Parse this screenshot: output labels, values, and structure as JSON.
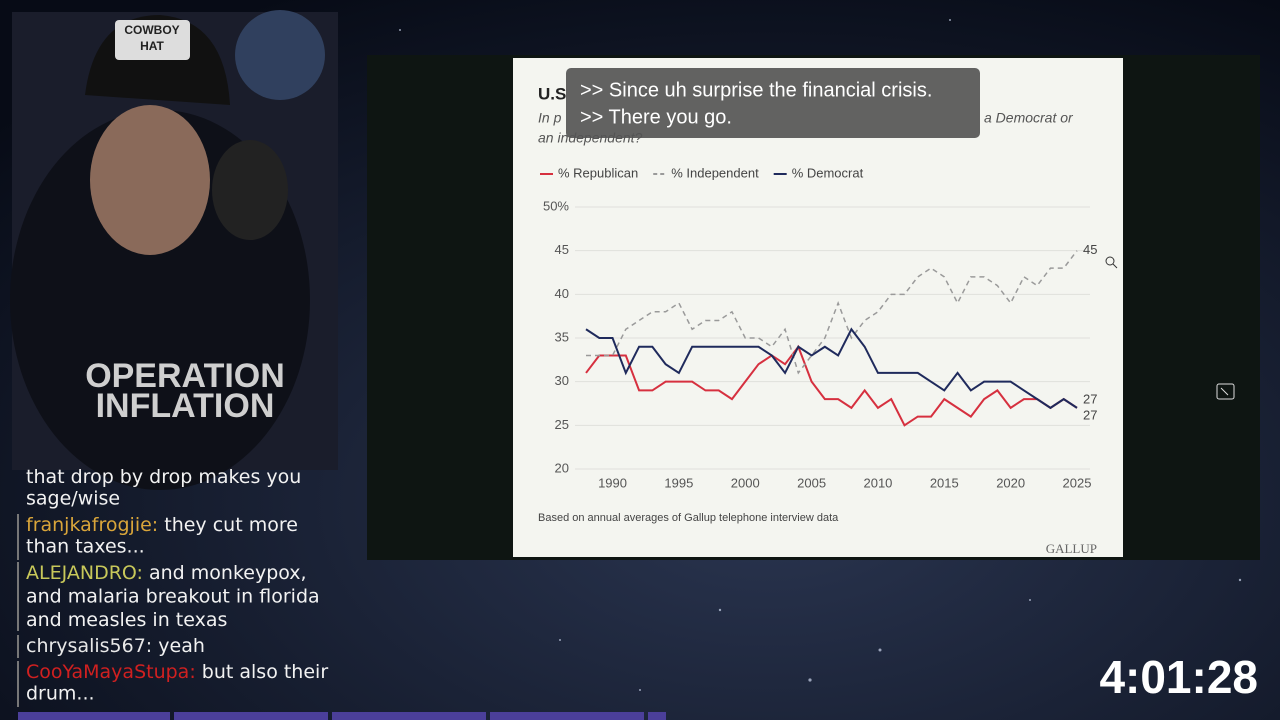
{
  "chart_data": {
    "type": "line",
    "title": "U.S",
    "subtitle_start": "In p",
    "subtitle_end": "a Democrat or",
    "subtitle_line2": "an independent?",
    "x": [
      1988,
      1989,
      1990,
      1991,
      1992,
      1993,
      1994,
      1995,
      1996,
      1997,
      1998,
      1999,
      2000,
      2001,
      2002,
      2003,
      2004,
      2005,
      2006,
      2007,
      2008,
      2009,
      2010,
      2011,
      2012,
      2013,
      2014,
      2015,
      2016,
      2017,
      2018,
      2019,
      2020,
      2021,
      2022,
      2023,
      2024,
      2025
    ],
    "series": [
      {
        "name": "% Republican",
        "color": "#d6303f",
        "dashed": false,
        "values": [
          31,
          33,
          33,
          33,
          29,
          29,
          30,
          30,
          30,
          29,
          29,
          28,
          30,
          32,
          33,
          32,
          34,
          30,
          28,
          28,
          27,
          29,
          27,
          28,
          25,
          26,
          26,
          28,
          27,
          26,
          28,
          29,
          27,
          28,
          28,
          27,
          28,
          27
        ]
      },
      {
        "name": "% Independent",
        "color": "#9a9a9a",
        "dashed": true,
        "values": [
          33,
          33,
          33,
          36,
          37,
          38,
          38,
          39,
          36,
          37,
          37,
          38,
          35,
          35,
          34,
          36,
          31,
          33,
          35,
          39,
          35,
          37,
          38,
          40,
          40,
          42,
          43,
          42,
          39,
          42,
          42,
          41,
          39,
          42,
          41,
          43,
          43,
          45
        ]
      },
      {
        "name": "% Democrat",
        "color": "#1f2a5c",
        "dashed": false,
        "values": [
          36,
          35,
          35,
          31,
          34,
          34,
          32,
          31,
          34,
          34,
          34,
          34,
          34,
          34,
          33,
          31,
          34,
          33,
          34,
          33,
          36,
          34,
          31,
          31,
          31,
          31,
          30,
          29,
          31,
          29,
          30,
          30,
          30,
          29,
          28,
          27,
          28,
          27
        ]
      }
    ],
    "xlim": [
      1988,
      2025
    ],
    "xticks": [
      1990,
      1995,
      2000,
      2005,
      2010,
      2015,
      2020,
      2025
    ],
    "ylim": [
      20,
      50
    ],
    "yticks": [
      20,
      25,
      30,
      35,
      40,
      {
        "value": 50,
        "label": "50%"
      },
      45
    ],
    "grid": true,
    "legend": "top",
    "note": "Based on annual averages of Gallup telephone interview data",
    "logo": "GALLUP"
  },
  "captions": [
    ">> Since uh surprise the financial crisis.",
    ">> There you go."
  ],
  "webcam": {
    "hat": [
      "COWBOY",
      "HAT"
    ],
    "hoodie": [
      "OPERATION",
      "INFLATION"
    ]
  },
  "chat": {
    "messages": [
      {
        "lines": [
          "that drop by drop makes you",
          "sage/wise"
        ]
      },
      {
        "user": "franjkafrogjie:",
        "color": "#d9a53a",
        "lines": [
          "they cut more",
          "than taxes..."
        ]
      },
      {
        "user": "ALEJANDRO:",
        "color": "#c8c85a",
        "lines": [
          "and monkeypox,",
          "and malaria breakout in florida",
          "and measles in texas"
        ]
      },
      {
        "user": "chrysalis567:",
        "color": "#e8e8e8",
        "lines": [
          "yeah"
        ]
      },
      {
        "user": "CooYaMayaStupa:",
        "color": "#d02020",
        "lines": [
          "but also their",
          "drum..."
        ]
      }
    ]
  },
  "timer": "4:01:28"
}
